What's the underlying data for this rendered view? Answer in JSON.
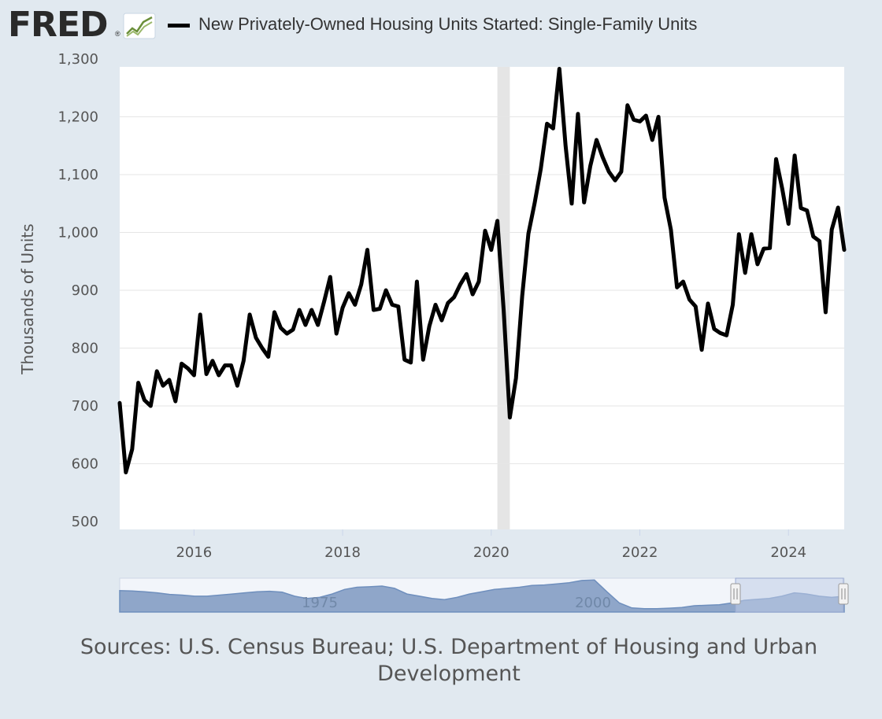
{
  "header": {
    "logo_text": "FRED",
    "logo_reg": "®",
    "legend_label": "New Privately-Owned Housing Units Started: Single-Family Units"
  },
  "colors": {
    "background": "#e1e9f0",
    "plot_background": "#ffffff",
    "series_line": "#000000",
    "recession_band": "#e5e5e5",
    "navigator_fill": "#8fa6c9",
    "navigator_selection": "#c0cce6"
  },
  "chart_data": {
    "type": "line",
    "title": "New Privately-Owned Housing Units Started: Single-Family Units",
    "ylabel": "Thousands of Units",
    "xlabel": "",
    "ylim": [
      500,
      1300
    ],
    "xlim": [
      2015.0,
      2024.75
    ],
    "yticks": [
      "500",
      "600",
      "700",
      "800",
      "900",
      "1,000",
      "1,100",
      "1,200",
      "1,300"
    ],
    "xticks": [
      "2016",
      "2018",
      "2020",
      "2022",
      "2024"
    ],
    "recession": [
      2020.083,
      2020.25
    ],
    "series": [
      {
        "name": "New Privately-Owned Housing Units Started: Single-Family Units",
        "x": [
          2015.0,
          2015.083,
          2015.167,
          2015.25,
          2015.333,
          2015.417,
          2015.5,
          2015.583,
          2015.667,
          2015.75,
          2015.833,
          2015.917,
          2016.0,
          2016.083,
          2016.167,
          2016.25,
          2016.333,
          2016.417,
          2016.5,
          2016.583,
          2016.667,
          2016.75,
          2016.833,
          2016.917,
          2017.0,
          2017.083,
          2017.167,
          2017.25,
          2017.333,
          2017.417,
          2017.5,
          2017.583,
          2017.667,
          2017.75,
          2017.833,
          2017.917,
          2018.0,
          2018.083,
          2018.167,
          2018.25,
          2018.333,
          2018.417,
          2018.5,
          2018.583,
          2018.667,
          2018.75,
          2018.833,
          2018.917,
          2019.0,
          2019.083,
          2019.167,
          2019.25,
          2019.333,
          2019.417,
          2019.5,
          2019.583,
          2019.667,
          2019.75,
          2019.833,
          2019.917,
          2020.0,
          2020.083,
          2020.167,
          2020.25,
          2020.333,
          2020.417,
          2020.5,
          2020.583,
          2020.667,
          2020.75,
          2020.833,
          2020.917,
          2021.0,
          2021.083,
          2021.167,
          2021.25,
          2021.333,
          2021.417,
          2021.5,
          2021.583,
          2021.667,
          2021.75,
          2021.833,
          2021.917,
          2022.0,
          2022.083,
          2022.167,
          2022.25,
          2022.333,
          2022.417,
          2022.5,
          2022.583,
          2022.667,
          2022.75,
          2022.833,
          2022.917,
          2023.0,
          2023.083,
          2023.167,
          2023.25,
          2023.333,
          2023.417,
          2023.5,
          2023.583,
          2023.667,
          2023.75,
          2023.833,
          2023.917,
          2024.0,
          2024.083,
          2024.167,
          2024.25,
          2024.333,
          2024.417,
          2024.5,
          2024.583,
          2024.667,
          2024.75
        ],
        "values": [
          705,
          585,
          625,
          740,
          710,
          700,
          760,
          735,
          745,
          708,
          773,
          765,
          753,
          858,
          755,
          778,
          753,
          770,
          770,
          735,
          778,
          858,
          818,
          800,
          785,
          862,
          835,
          825,
          832,
          866,
          840,
          866,
          840,
          880,
          923,
          825,
          870,
          895,
          875,
          910,
          970,
          866,
          868,
          900,
          875,
          872,
          780,
          775,
          915,
          780,
          838,
          875,
          848,
          878,
          888,
          910,
          928,
          893,
          915,
          1003,
          970,
          1020,
          865,
          680,
          748,
          890,
          998,
          1050,
          1110,
          1188,
          1180,
          1283,
          1150,
          1050,
          1205,
          1052,
          1115,
          1160,
          1130,
          1105,
          1090,
          1105,
          1220,
          1195,
          1192,
          1202,
          1160,
          1200,
          1060,
          1005,
          905,
          915,
          884,
          872,
          797,
          877,
          833,
          826,
          822,
          875,
          997,
          930,
          997,
          945,
          972,
          973,
          1127,
          1075,
          1015,
          1133,
          1042,
          1038,
          993,
          985,
          862,
          1005,
          1043,
          970
        ]
      }
    ],
    "navigator": {
      "labels": [
        "1975",
        "2000"
      ],
      "values": [
        1250,
        1230,
        1200,
        1150,
        1080,
        1050,
        1000,
        1000,
        1050,
        1100,
        1150,
        1200,
        1220,
        1180,
        1000,
        900,
        950,
        1100,
        1300,
        1400,
        1420,
        1450,
        1350,
        1100,
        1000,
        900,
        850,
        950,
        1100,
        1200,
        1300,
        1350,
        1400,
        1480,
        1500,
        1550,
        1600,
        1700,
        1720,
        1200,
        700,
        480,
        450,
        450,
        470,
        500,
        580,
        600,
        620,
        700,
        820,
        860,
        900,
        1000,
        1150,
        1100,
        1000,
        950,
        1000
      ]
    }
  },
  "footer": {
    "sources_line1": "Sources: U.S. Census Bureau; U.S. Department of Housing and Urban",
    "sources_line2": "Development"
  }
}
